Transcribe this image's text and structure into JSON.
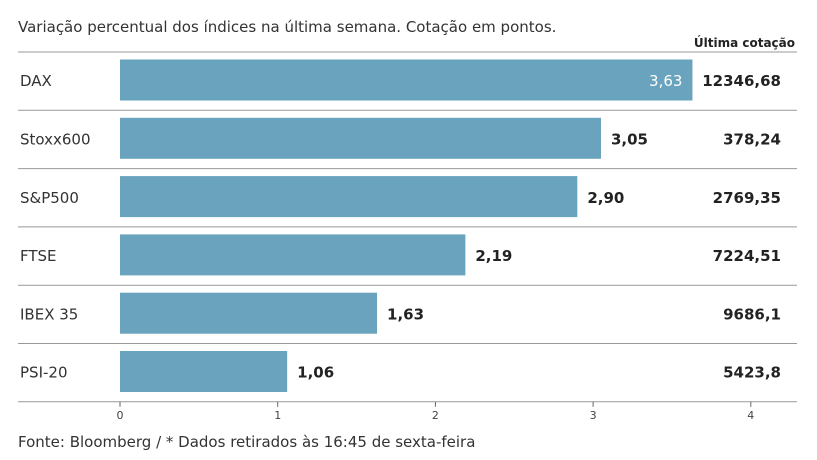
{
  "chart_data": {
    "type": "bar",
    "orientation": "horizontal",
    "subtitle": "Variação percentual dos índices na última semana. Cotação em pontos.",
    "source": "Fonte: Bloomberg / * Dados retirados às 16:45 de sexta-feira",
    "categories": [
      "DAX",
      "Stoxx600",
      "S&P500",
      "FTSE",
      "IBEX 35",
      "PSI-20"
    ],
    "values": [
      3.63,
      3.05,
      2.9,
      2.19,
      1.63,
      1.06
    ],
    "value_labels": [
      "3,63",
      "3,05",
      "2,90",
      "2,19",
      "1,63",
      "1,06"
    ],
    "quote_header": "Última cotação",
    "quotes": [
      "12346,68",
      "378,24",
      "2769,35",
      "7224,51",
      "9686,1",
      "5423,8"
    ],
    "xlim": [
      0,
      4
    ],
    "xticks": [
      0,
      1,
      2,
      3,
      4
    ],
    "xtick_labels": [
      "0",
      "1",
      "2",
      "3",
      "4"
    ],
    "bar_color": "#6aa3bd",
    "grid": false
  }
}
